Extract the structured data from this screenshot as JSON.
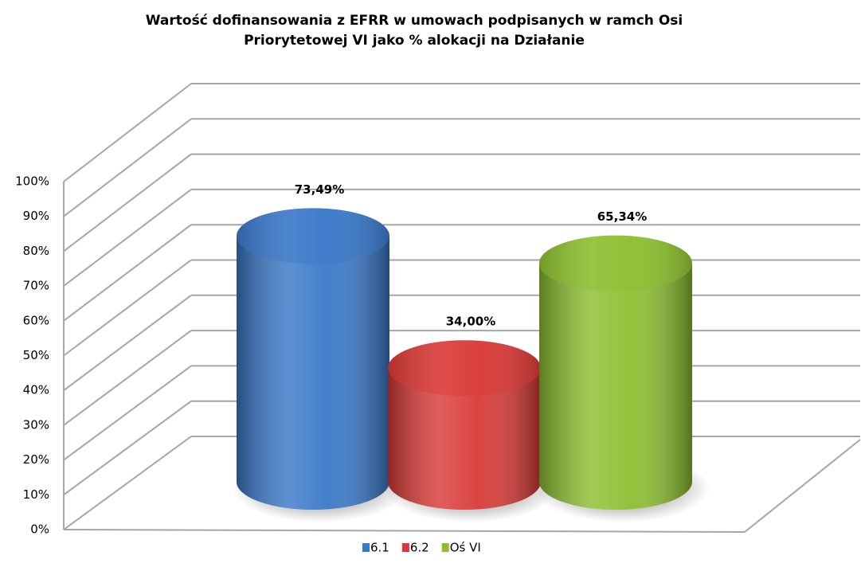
{
  "chart_data": {
    "type": "cylinder",
    "title": "Wartość dofinansowania z EFRR w  umowach podpisanych w ramch Osi\nPriorytetowej VI jako % alokacji na Działanie",
    "series": [
      {
        "name": "6.1",
        "color": "#3a78c8",
        "values": [
          73.49
        ],
        "value_labels": [
          "73,49%"
        ]
      },
      {
        "name": "6.2",
        "color": "#d93a36",
        "values": [
          34.0
        ],
        "value_labels": [
          "34,00%"
        ]
      },
      {
        "name": "Oś VI",
        "color": "#8cbf30",
        "values": [
          65.34
        ],
        "value_labels": [
          "65,34%"
        ]
      }
    ],
    "ylim": [
      0,
      100
    ],
    "yticks": [
      {
        "value": 0,
        "label": "0%"
      },
      {
        "value": 10,
        "label": "10%"
      },
      {
        "value": 20,
        "label": "20%"
      },
      {
        "value": 30,
        "label": "30%"
      },
      {
        "value": 40,
        "label": "40%"
      },
      {
        "value": 50,
        "label": "50%"
      },
      {
        "value": 60,
        "label": "60%"
      },
      {
        "value": 70,
        "label": "70%"
      },
      {
        "value": 80,
        "label": "80%"
      },
      {
        "value": 90,
        "label": "90%"
      },
      {
        "value": 100,
        "label": "100%"
      }
    ],
    "grid": true
  }
}
